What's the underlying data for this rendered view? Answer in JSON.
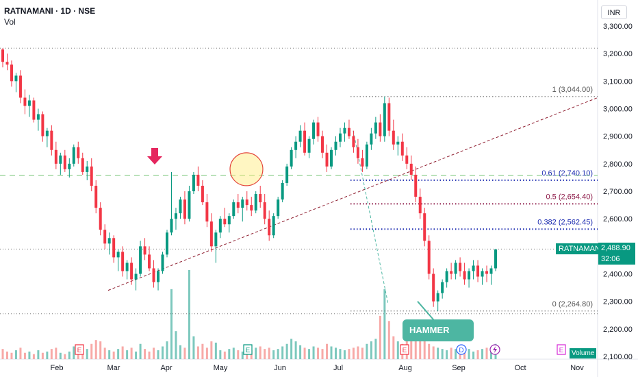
{
  "header": {
    "symbol_line": "RATNAMANI · 1D · NSE",
    "vol_label": "Vol"
  },
  "currency_label": "INR",
  "current": {
    "symbol": "RATNAMANI",
    "price": "2,488.90",
    "countdown": "32:06"
  },
  "annotation": {
    "hammer": "HAMMER"
  },
  "volume_badge": "Volume",
  "colors": {
    "up": "#089981",
    "down": "#f23645",
    "vol_up": "#7cc8bd",
    "vol_down": "#f7a9a7",
    "fib_blue": "#1c2bb0",
    "fib_purple": "#8e1c4a",
    "trend": "#8e1c2e"
  },
  "chart_data": {
    "type": "candlestick",
    "y_axis": {
      "min": 2090,
      "max": 3340,
      "ticks": [
        {
          "value": 3300,
          "label": "3,300.00"
        },
        {
          "value": 3200,
          "label": "3,200.00"
        },
        {
          "value": 3100,
          "label": "3,100.00"
        },
        {
          "value": 3000,
          "label": "3,000.00"
        },
        {
          "value": 2900,
          "label": "2,900.00"
        },
        {
          "value": 2800,
          "label": "2,800.00"
        },
        {
          "value": 2700,
          "label": "2,700.00"
        },
        {
          "value": 2600,
          "label": "2,600.00"
        },
        {
          "value": 2400,
          "label": "2,400.00"
        },
        {
          "value": 2300,
          "label": "2,300.00"
        },
        {
          "value": 2200,
          "label": "2,200.00"
        },
        {
          "value": 2100,
          "label": "2,100.00"
        }
      ]
    },
    "x_axis": {
      "ticks": [
        "Feb",
        "Mar",
        "Apr",
        "May",
        "Jun",
        "Jul",
        "Aug",
        "Sep",
        "Oct",
        "Nov"
      ]
    },
    "fib_levels": [
      {
        "label": "1 (3,044.00)",
        "value": 3044,
        "color": "#555555"
      },
      {
        "label": "0.61 (2,740.10)",
        "value": 2740.1,
        "color": "#1c2bb0"
      },
      {
        "label": "0.5 (2,654.40)",
        "value": 2654.4,
        "color": "#8e1c4a"
      },
      {
        "label": "0.382 (2,562.45)",
        "value": 2562.45,
        "color": "#1c2bb0"
      },
      {
        "label": "0 (2,264.80)",
        "value": 2264.8,
        "color": "#555555"
      }
    ],
    "horizontal_levels": [
      3220,
      2758,
      2490,
      2255
    ],
    "event_markers": [
      {
        "month_pos": "Feb",
        "icon": "E"
      },
      {
        "month_pos": "May",
        "icon": "E"
      },
      {
        "month_pos": "Aug",
        "icon": "E"
      },
      {
        "month_pos": "Aug",
        "icon": "D"
      },
      {
        "month_pos": "Sep",
        "icon": "lightning"
      },
      {
        "month_pos": "Nov",
        "icon": "E"
      }
    ],
    "candles": [
      [
        3215,
        3220,
        3150,
        3170
      ],
      [
        3170,
        3200,
        3140,
        3160
      ],
      [
        3160,
        3175,
        3080,
        3100
      ],
      [
        3100,
        3130,
        3060,
        3120
      ],
      [
        3120,
        3140,
        3020,
        3040
      ],
      [
        3040,
        3070,
        2980,
        3010
      ],
      [
        3010,
        3050,
        2970,
        3030
      ],
      [
        3030,
        3040,
        2950,
        2960
      ],
      [
        2960,
        3000,
        2920,
        2980
      ],
      [
        2980,
        2990,
        2880,
        2900
      ],
      [
        2900,
        2930,
        2860,
        2920
      ],
      [
        2920,
        2940,
        2830,
        2850
      ],
      [
        2850,
        2880,
        2780,
        2800
      ],
      [
        2800,
        2840,
        2760,
        2830
      ],
      [
        2830,
        2850,
        2770,
        2780
      ],
      [
        2780,
        2820,
        2750,
        2800
      ],
      [
        2800,
        2870,
        2790,
        2860
      ],
      [
        2860,
        2880,
        2800,
        2820
      ],
      [
        2820,
        2840,
        2760,
        2770
      ],
      [
        2770,
        2810,
        2740,
        2790
      ],
      [
        2790,
        2820,
        2700,
        2720
      ],
      [
        2720,
        2740,
        2620,
        2640
      ],
      [
        2640,
        2660,
        2540,
        2560
      ],
      [
        2560,
        2580,
        2490,
        2510
      ],
      [
        2510,
        2550,
        2470,
        2530
      ],
      [
        2530,
        2540,
        2440,
        2460
      ],
      [
        2460,
        2490,
        2410,
        2480
      ],
      [
        2480,
        2500,
        2390,
        2410
      ],
      [
        2410,
        2450,
        2380,
        2440
      ],
      [
        2440,
        2460,
        2360,
        2380
      ],
      [
        2380,
        2420,
        2340,
        2400
      ],
      [
        2400,
        2520,
        2390,
        2500
      ],
      [
        2500,
        2530,
        2450,
        2470
      ],
      [
        2470,
        2500,
        2410,
        2420
      ],
      [
        2420,
        2450,
        2350,
        2370
      ],
      [
        2370,
        2420,
        2340,
        2410
      ],
      [
        2410,
        2480,
        2400,
        2470
      ],
      [
        2470,
        2560,
        2460,
        2550
      ],
      [
        2550,
        2770,
        2540,
        2600
      ],
      [
        2600,
        2640,
        2560,
        2620
      ],
      [
        2620,
        2680,
        2600,
        2670
      ],
      [
        2670,
        2700,
        2580,
        2600
      ],
      [
        2600,
        2720,
        2590,
        2700
      ],
      [
        2700,
        2770,
        2690,
        2760
      ],
      [
        2760,
        2790,
        2700,
        2720
      ],
      [
        2720,
        2740,
        2650,
        2660
      ],
      [
        2660,
        2690,
        2570,
        2590
      ],
      [
        2590,
        2620,
        2480,
        2500
      ],
      [
        2500,
        2560,
        2440,
        2550
      ],
      [
        2550,
        2610,
        2530,
        2600
      ],
      [
        2600,
        2640,
        2570,
        2580
      ],
      [
        2580,
        2620,
        2550,
        2610
      ],
      [
        2610,
        2670,
        2600,
        2660
      ],
      [
        2660,
        2690,
        2620,
        2640
      ],
      [
        2640,
        2680,
        2590,
        2670
      ],
      [
        2670,
        2700,
        2630,
        2650
      ],
      [
        2650,
        2680,
        2610,
        2630
      ],
      [
        2630,
        2700,
        2620,
        2690
      ],
      [
        2690,
        2720,
        2640,
        2660
      ],
      [
        2660,
        2690,
        2580,
        2600
      ],
      [
        2600,
        2630,
        2520,
        2540
      ],
      [
        2540,
        2620,
        2530,
        2610
      ],
      [
        2610,
        2680,
        2600,
        2670
      ],
      [
        2670,
        2740,
        2660,
        2730
      ],
      [
        2730,
        2800,
        2720,
        2790
      ],
      [
        2790,
        2860,
        2780,
        2850
      ],
      [
        2850,
        2900,
        2820,
        2880
      ],
      [
        2880,
        2940,
        2860,
        2920
      ],
      [
        2920,
        2950,
        2830,
        2840
      ],
      [
        2840,
        2900,
        2820,
        2890
      ],
      [
        2890,
        2960,
        2870,
        2950
      ],
      [
        2950,
        2970,
        2880,
        2900
      ],
      [
        2900,
        2920,
        2820,
        2840
      ],
      [
        2840,
        2870,
        2770,
        2790
      ],
      [
        2790,
        2860,
        2780,
        2850
      ],
      [
        2850,
        2900,
        2830,
        2880
      ],
      [
        2880,
        2930,
        2860,
        2910
      ],
      [
        2910,
        2950,
        2880,
        2930
      ],
      [
        2930,
        2960,
        2890,
        2900
      ],
      [
        2900,
        2920,
        2840,
        2860
      ],
      [
        2860,
        2890,
        2800,
        2820
      ],
      [
        2820,
        2850,
        2770,
        2790
      ],
      [
        2790,
        2880,
        2780,
        2870
      ],
      [
        2870,
        2930,
        2850,
        2910
      ],
      [
        2910,
        2970,
        2890,
        2950
      ],
      [
        2950,
        2980,
        2880,
        2900
      ],
      [
        2900,
        3044,
        2880,
        3020
      ],
      [
        3020,
        3040,
        2900,
        2920
      ],
      [
        2920,
        2960,
        2850,
        2870
      ],
      [
        2870,
        2900,
        2830,
        2880
      ],
      [
        2880,
        2910,
        2810,
        2830
      ],
      [
        2830,
        2860,
        2780,
        2800
      ],
      [
        2800,
        2830,
        2740,
        2760
      ],
      [
        2760,
        2790,
        2660,
        2680
      ],
      [
        2680,
        2710,
        2600,
        2620
      ],
      [
        2620,
        2640,
        2500,
        2520
      ],
      [
        2520,
        2540,
        2380,
        2400
      ],
      [
        2400,
        2420,
        2280,
        2300
      ],
      [
        2300,
        2340,
        2264,
        2330
      ],
      [
        2330,
        2380,
        2310,
        2370
      ],
      [
        2370,
        2420,
        2350,
        2410
      ],
      [
        2410,
        2440,
        2380,
        2400
      ],
      [
        2400,
        2450,
        2380,
        2440
      ],
      [
        2440,
        2460,
        2390,
        2410
      ],
      [
        2410,
        2440,
        2360,
        2380
      ],
      [
        2380,
        2420,
        2350,
        2410
      ],
      [
        2410,
        2450,
        2380,
        2430
      ],
      [
        2430,
        2450,
        2370,
        2390
      ],
      [
        2390,
        2420,
        2360,
        2410
      ],
      [
        2410,
        2430,
        2370,
        2400
      ],
      [
        2400,
        2430,
        2360,
        2420
      ],
      [
        2420,
        2490,
        2410,
        2488.9
      ]
    ],
    "volumes": [
      8,
      6,
      5,
      7,
      9,
      5,
      6,
      4,
      7,
      5,
      6,
      8,
      9,
      5,
      4,
      6,
      10,
      7,
      5,
      8,
      12,
      15,
      14,
      9,
      7,
      6,
      8,
      10,
      7,
      9,
      6,
      12,
      8,
      6,
      9,
      7,
      10,
      14,
      55,
      22,
      11,
      9,
      70,
      18,
      10,
      12,
      9,
      14,
      13,
      7,
      6,
      8,
      9,
      7,
      6,
      8,
      7,
      9,
      10,
      8,
      9,
      7,
      8,
      10,
      12,
      16,
      14,
      11,
      9,
      8,
      10,
      9,
      8,
      12,
      10,
      9,
      8,
      7,
      8,
      9,
      10,
      9,
      12,
      14,
      16,
      34,
      55,
      30,
      18,
      14,
      12,
      16,
      20,
      26,
      24,
      20,
      12,
      10,
      9,
      8,
      7,
      9,
      8,
      6,
      7,
      8,
      6,
      7,
      8,
      9,
      7,
      12
    ]
  }
}
